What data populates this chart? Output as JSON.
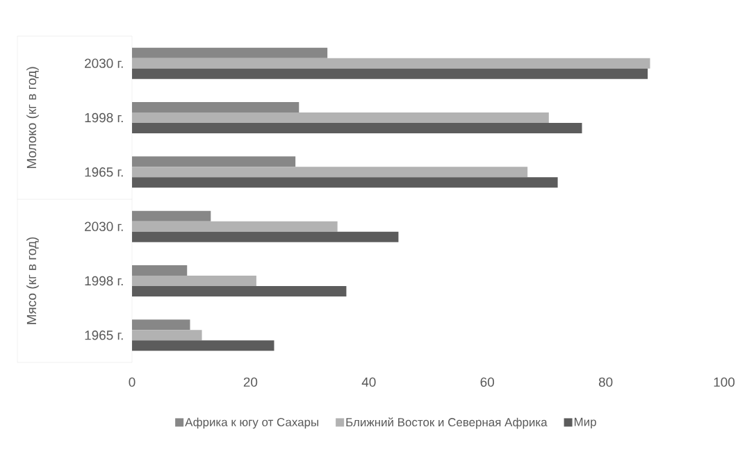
{
  "chart_data": {
    "type": "bar",
    "orientation": "horizontal",
    "categories": [
      "2030 г.",
      "1998 г.",
      "1965 г.",
      "2030 г.",
      "1998 г.",
      "1965 г."
    ],
    "series": [
      {
        "name": "Африка к югу от Сахары",
        "color": "#878787",
        "values": [
          33,
          28.2,
          27.6,
          13.3,
          9.3,
          9.8
        ]
      },
      {
        "name": "Ближний Восток и Северная Африка",
        "color": "#b2b2b2",
        "values": [
          87.5,
          70.4,
          66.8,
          34.7,
          21,
          11.8
        ]
      },
      {
        "name": "Мир",
        "color": "#5c5c5c",
        "values": [
          87.1,
          76,
          71.9,
          45,
          36.2,
          24
        ]
      }
    ],
    "xlim": [
      0,
      100
    ],
    "xticks": [
      0,
      20,
      40,
      60,
      80,
      100
    ],
    "annotations": [
      "Молоко (кг в год)",
      "Мясо (кг в год)"
    ],
    "legend": "bottom"
  }
}
